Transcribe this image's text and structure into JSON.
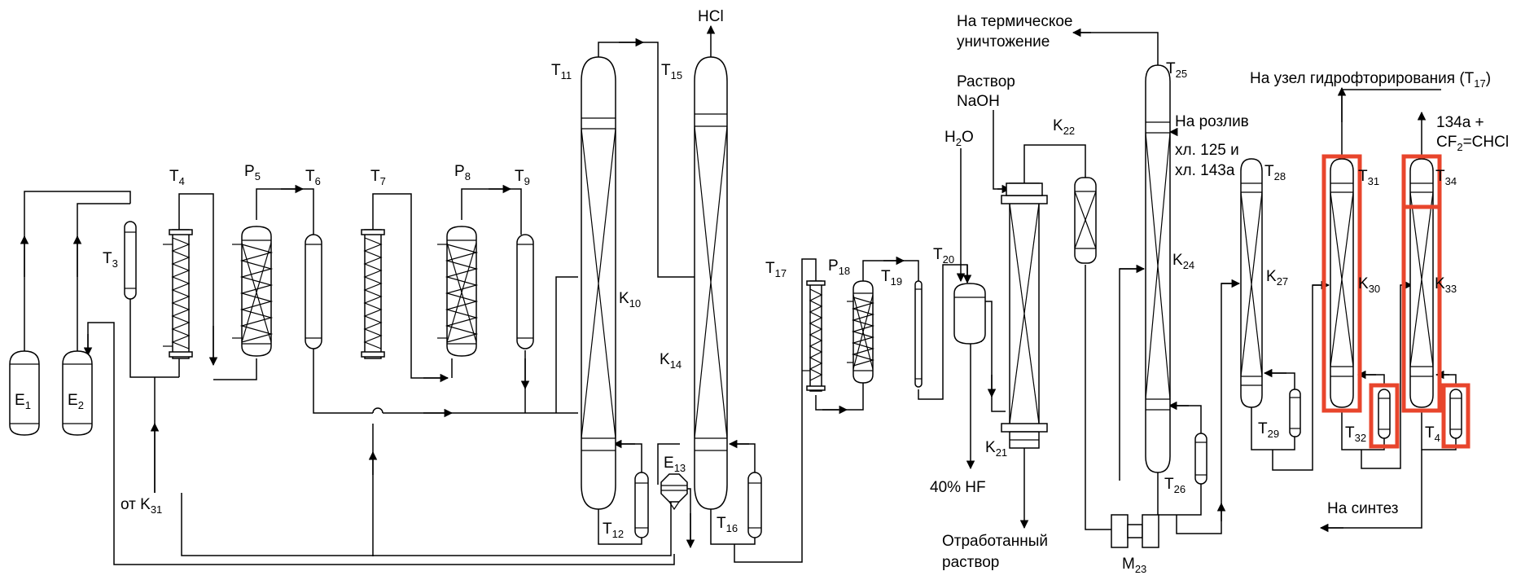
{
  "equipment": {
    "E1": {
      "base": "E",
      "sub": "1"
    },
    "E2": {
      "base": "E",
      "sub": "2"
    },
    "T3": {
      "base": "T",
      "sub": "3"
    },
    "T4": {
      "base": "T",
      "sub": "4"
    },
    "P5": {
      "base": "P",
      "sub": "5"
    },
    "T6": {
      "base": "T",
      "sub": "6"
    },
    "T7": {
      "base": "T",
      "sub": "7"
    },
    "P8": {
      "base": "P",
      "sub": "8"
    },
    "T9": {
      "base": "T",
      "sub": "9"
    },
    "K10": {
      "base": "K",
      "sub": "10"
    },
    "T11": {
      "base": "T",
      "sub": "11"
    },
    "T12": {
      "base": "T",
      "sub": "12"
    },
    "E13": {
      "base": "E",
      "sub": "13"
    },
    "K14": {
      "base": "K",
      "sub": "14"
    },
    "T15": {
      "base": "T",
      "sub": "15"
    },
    "T16": {
      "base": "T",
      "sub": "16"
    },
    "T17": {
      "base": "T",
      "sub": "17"
    },
    "P18": {
      "base": "P",
      "sub": "18"
    },
    "T19": {
      "base": "T",
      "sub": "19"
    },
    "T20": {
      "base": "T",
      "sub": "20"
    },
    "K21": {
      "base": "K",
      "sub": "21"
    },
    "K22": {
      "base": "K",
      "sub": "22"
    },
    "M23": {
      "base": "M",
      "sub": "23"
    },
    "K24": {
      "base": "K",
      "sub": "24"
    },
    "T25": {
      "base": "T",
      "sub": "25"
    },
    "T26": {
      "base": "T",
      "sub": "26"
    },
    "K27": {
      "base": "K",
      "sub": "27"
    },
    "T28": {
      "base": "T",
      "sub": "28"
    },
    "T29": {
      "base": "T",
      "sub": "29"
    },
    "K30": {
      "base": "K",
      "sub": "30"
    },
    "T31": {
      "base": "T",
      "sub": "31"
    },
    "T32": {
      "base": "T",
      "sub": "32"
    },
    "K33": {
      "base": "K",
      "sub": "33"
    },
    "T34": {
      "base": "T",
      "sub": "34"
    },
    "T35": {
      "base": "T",
      "sub": "4"
    }
  },
  "streams": {
    "hcl": "HCl",
    "from_k31": {
      "base": "от K",
      "sub": "31"
    },
    "h2o": {
      "base": "H",
      "sub": "2",
      "tail": "O"
    },
    "naoh_1": "Раствор",
    "naoh_2": "NaOH",
    "thermal_1": "На термическое",
    "thermal_2": "уничтожение",
    "hf40": "40% HF",
    "spent_1": "Отработанный",
    "spent_2": "раствор",
    "bottling": "На розлив",
    "r125": "хл. 125 и",
    "r143a": "хл. 143а",
    "hydrofluor": {
      "base": "На узел гидрофторирования (T",
      "sub": "17",
      "tail": ")"
    },
    "prod_1": "134а +",
    "prod_2": {
      "base": "CF",
      "sub": "2",
      "tail": "=CHCl"
    },
    "synthesis": "На синтез"
  },
  "colors": {
    "line": "#000000",
    "highlight": "#e8452c"
  }
}
